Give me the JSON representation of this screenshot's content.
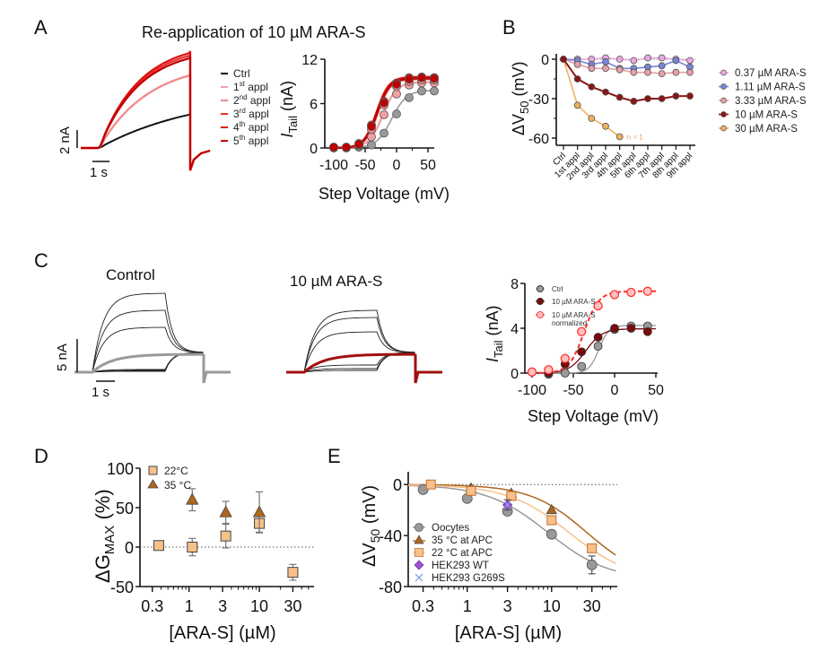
{
  "panels": {
    "A": {
      "letter": "A",
      "title": "Re-application of 10 µM ARA-S",
      "scale_current": "2 nA",
      "scale_time": "1 s"
    },
    "B": {
      "letter": "B"
    },
    "C": {
      "letter": "C",
      "trace1_title": "Control",
      "trace2_title": "10 µM ARA-S",
      "scale_current": "5 nA",
      "scale_time": "1 s"
    },
    "D": {
      "letter": "D"
    },
    "E": {
      "letter": "E"
    }
  },
  "colors": {
    "ctrl": "#111111",
    "appl1": "#f4a0a0",
    "appl2": "#f08a8a",
    "appl3": "#e83030",
    "appl4": "#e01010",
    "appl5": "#c00000",
    "c037": "#e8a8e0",
    "c111": "#7a84d8",
    "c333": "#e6a0a8",
    "c10": "#8b1515",
    "c30": "#f0b060",
    "grey": "#999999",
    "darkred": "#7a0a0a",
    "red_norm": "#ff3030",
    "sq22": "#f8c08a",
    "tri35": "#b0661c",
    "hekwt": "#a050d0",
    "hekg": "#8aa0e8"
  },
  "chart_data": [
    {
      "id": "A-traces",
      "type": "line",
      "title": "Re-application of 10 µM ARA-S",
      "legend": [
        "Ctrl",
        "1st appl",
        "2nd appl",
        "3rd appl",
        "4th appl",
        "5th appl"
      ],
      "legend_sup": [
        "",
        "st",
        "nd",
        "rd",
        "th",
        "th"
      ],
      "legend_base": [
        "Ctrl",
        "1",
        "2",
        "3",
        "4",
        "5"
      ],
      "legend_suffix": [
        "",
        " appl",
        " appl",
        " appl",
        " appl",
        " appl"
      ],
      "series_end_nA": [
        3.9,
        8.3,
        8.3,
        10.5,
        10.8,
        10.2
      ],
      "scale_bars": {
        "current": "2 nA",
        "time": "1 s"
      }
    },
    {
      "id": "A-IV",
      "type": "line",
      "xlabel": "Step Voltage (mV)",
      "ylabel": "I_Tail (nA)",
      "xlim": [
        -100,
        60
      ],
      "ylim": [
        0,
        12
      ],
      "xticks": [
        -100,
        -50,
        0,
        50
      ],
      "yticks": [
        0,
        6,
        12
      ],
      "x": [
        -100,
        -80,
        -60,
        -40,
        -20,
        0,
        20,
        40,
        60
      ],
      "series": [
        {
          "name": "Ctrl",
          "values": [
            0,
            0,
            0.1,
            0.4,
            2.0,
            4.6,
            6.8,
            7.7,
            7.7
          ]
        },
        {
          "name": "1st appl",
          "values": [
            0.1,
            0.1,
            0.3,
            1.5,
            4.5,
            7.3,
            8.5,
            8.8,
            8.8
          ]
        },
        {
          "name": "2nd appl",
          "values": [
            0.1,
            0.1,
            0.4,
            2.5,
            5.8,
            8.3,
            9.0,
            9.2,
            9.2
          ]
        },
        {
          "name": "3rd appl",
          "values": [
            0.1,
            0.1,
            0.6,
            3.0,
            6.2,
            8.7,
            9.4,
            9.5,
            9.5
          ]
        },
        {
          "name": "4th appl",
          "values": [
            0.1,
            0.1,
            0.6,
            3.1,
            6.3,
            8.8,
            9.5,
            9.6,
            9.5
          ]
        },
        {
          "name": "5th appl",
          "values": [
            0.1,
            0.1,
            0.5,
            2.9,
            6.1,
            8.6,
            9.3,
            9.5,
            9.4
          ]
        }
      ]
    },
    {
      "id": "B",
      "type": "line",
      "ylabel": "ΔV50 (mV)",
      "ylim": [
        -60,
        0
      ],
      "yticks": [
        0,
        -30,
        -60
      ],
      "categories": [
        "Ctrl",
        "1st appl",
        "2nd appl",
        "3rd appl",
        "4th appl",
        "5th appl",
        "6th appl",
        "7th appl",
        "8th appl",
        "9th appl"
      ],
      "series": [
        {
          "name": "0.37 µM ARA-S",
          "values": [
            0,
            0,
            0,
            1,
            0,
            -1,
            1,
            1,
            0,
            -1
          ]
        },
        {
          "name": "1.11 µM ARA-S",
          "values": [
            0,
            -1,
            -4,
            -2,
            -7,
            -7,
            -6,
            -5,
            -1,
            -6
          ]
        },
        {
          "name": "3.33 µM ARA-S",
          "values": [
            0,
            -4,
            -7,
            -7,
            -8,
            -10,
            -10,
            -11,
            -10,
            -10
          ]
        },
        {
          "name": "10 µM ARA-S",
          "values": [
            0,
            -15,
            -21,
            -25,
            -29,
            -32,
            -30,
            -30,
            -28,
            -28
          ]
        },
        {
          "name": "30 µM ARA-S",
          "values": [
            0,
            -35,
            -45,
            -51,
            -59,
            null,
            null,
            null,
            null,
            null
          ]
        }
      ],
      "annotation": "n = 1"
    },
    {
      "id": "C-IV",
      "type": "line",
      "xlabel": "Step Voltage (mV)",
      "ylabel": "I_Tail (nA)",
      "xlim": [
        -100,
        50
      ],
      "ylim": [
        0,
        8
      ],
      "xticks": [
        -100,
        -50,
        0,
        50
      ],
      "yticks": [
        0,
        4,
        8
      ],
      "x": [
        -100,
        -80,
        -60,
        -40,
        -20,
        0,
        20,
        40
      ],
      "series": [
        {
          "name": "Ctrl",
          "values": [
            0.1,
            -0.1,
            0.0,
            0.6,
            2.4,
            3.9,
            4.2,
            4.2
          ]
        },
        {
          "name": "10 µM ARA-S",
          "values": [
            0.1,
            0.0,
            0.8,
            1.9,
            3.2,
            4.0,
            4.0,
            3.7
          ]
        },
        {
          "name": "10 µM ARA-S normalized",
          "values": [
            0.1,
            0.3,
            1.3,
            3.7,
            6.0,
            7.0,
            7.2,
            7.3
          ]
        }
      ],
      "legend": [
        "Ctrl",
        "10 µM ARA-S",
        "10 µM ARA-S",
        "normalized"
      ]
    },
    {
      "id": "D",
      "type": "scatter",
      "xlabel": "[ARA-S] (µM)",
      "ylabel": "ΔG_MAX (%)",
      "xscale": "log",
      "xlim": [
        0.2,
        60
      ],
      "ylim": [
        -50,
        100
      ],
      "xticks": [
        0.3,
        1,
        3,
        10,
        30
      ],
      "xticklabels": [
        "0.3",
        "1",
        "3",
        "10",
        "30"
      ],
      "yticks": [
        -50,
        0,
        50,
        100
      ],
      "series": [
        {
          "name": "22°C",
          "x": [
            0.37,
            1.11,
            3.33,
            10,
            30
          ],
          "values": [
            2,
            0,
            14,
            30,
            -32
          ],
          "err": [
            1,
            11,
            15,
            11,
            10
          ]
        },
        {
          "name": "35 °C",
          "x": [
            1.11,
            3.33,
            10
          ],
          "values": [
            60,
            44,
            44
          ],
          "err": [
            14,
            14,
            26
          ]
        }
      ]
    },
    {
      "id": "E",
      "type": "scatter",
      "xlabel": "[ARA-S] (µM)",
      "ylabel": "ΔV50 (mV)",
      "xscale": "log",
      "xlim": [
        0.2,
        60
      ],
      "ylim": [
        -80,
        10
      ],
      "xticks": [
        0.3,
        1,
        3,
        10,
        30
      ],
      "xticklabels": [
        "0.3",
        "1",
        "3",
        "10",
        "30"
      ],
      "yticks": [
        0,
        -40,
        -80
      ],
      "series": [
        {
          "name": "Oocytes",
          "x": [
            0.3,
            1,
            3,
            10,
            30
          ],
          "values": [
            -4,
            -11,
            -21,
            -39,
            -63
          ],
          "err": [
            1,
            2,
            2,
            3,
            7
          ]
        },
        {
          "name": "35 °C at APC",
          "x": [
            1.11,
            3.33,
            10
          ],
          "values": [
            -3,
            -7,
            -20
          ],
          "err": [
            1,
            1,
            1
          ]
        },
        {
          "name": "22 °C at APC",
          "x": [
            0.37,
            1.11,
            3.33,
            10,
            30
          ],
          "values": [
            0,
            -5,
            -9,
            -28,
            -50
          ],
          "err": [
            1,
            1,
            1,
            1,
            1
          ]
        },
        {
          "name": "HEK293 WT",
          "x": [
            3
          ],
          "values": [
            -16
          ],
          "err": [
            4
          ]
        },
        {
          "name": "HEK293 G269S",
          "x": [
            3
          ],
          "values": [
            -16
          ],
          "err": [
            0
          ]
        }
      ]
    }
  ]
}
